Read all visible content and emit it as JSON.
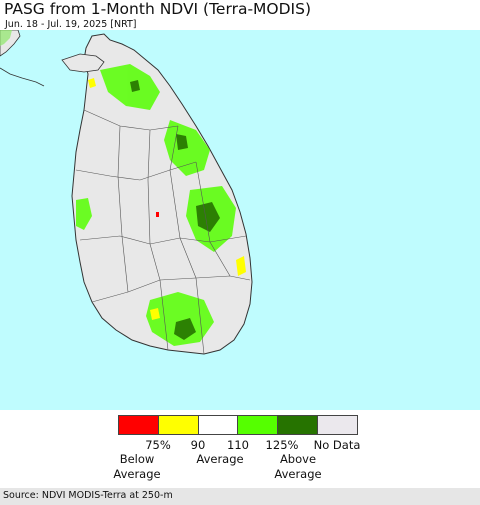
{
  "title": "PASG from 1-Month NDVI (Terra-MODIS)",
  "date_range": "Jun. 18 - Jul. 19, 2025 [NRT]",
  "legend": {
    "swatches": [
      {
        "color": "#ff0000"
      },
      {
        "color": "#ffff00"
      },
      {
        "color": "#ffffff"
      },
      {
        "color": "#55ff00"
      },
      {
        "color": "#267300"
      },
      {
        "color": "#ebe8ed"
      }
    ],
    "ticks": [
      "75%",
      "90",
      "110",
      "125%"
    ],
    "no_data": "No Data",
    "categories": {
      "below": "Below\nAverage",
      "average": "Average",
      "above": "Above\nAverage"
    }
  },
  "colors": {
    "ocean": "#bffcfe",
    "land_nodata": "#e8e8e8",
    "boundary": "#555555"
  },
  "source": "Source: NDVI MODIS-Terra at 250-m"
}
